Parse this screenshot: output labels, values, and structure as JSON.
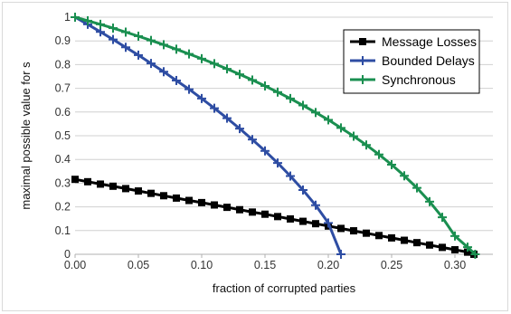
{
  "chart_data": {
    "type": "line",
    "xlabel": "fraction of corrupted parties",
    "ylabel": "maximal possible value for s",
    "xlim": [
      0,
      0.33
    ],
    "ylim": [
      0,
      1
    ],
    "x_ticks": [
      "0.00",
      "0.05",
      "0.10",
      "0.15",
      "0.20",
      "0.25",
      "0.30"
    ],
    "y_ticks": [
      "0",
      "0.1",
      "0.2",
      "0.3",
      "0.4",
      "0.5",
      "0.6",
      "0.7",
      "0.8",
      "0.9",
      "1"
    ],
    "grid": "horizontal",
    "legend_position": "top-right",
    "series": [
      {
        "name": "Message Losses",
        "color": "#000000",
        "marker": "square",
        "x": [
          0.0,
          0.01,
          0.02,
          0.03,
          0.04,
          0.05,
          0.06,
          0.07,
          0.08,
          0.09,
          0.1,
          0.11,
          0.12,
          0.13,
          0.14,
          0.15,
          0.16,
          0.17,
          0.18,
          0.19,
          0.2,
          0.21,
          0.22,
          0.23,
          0.24,
          0.25,
          0.26,
          0.27,
          0.28,
          0.29,
          0.3,
          0.31,
          0.315
        ],
        "y": [
          0.316,
          0.306,
          0.296,
          0.287,
          0.277,
          0.267,
          0.257,
          0.247,
          0.237,
          0.227,
          0.218,
          0.208,
          0.198,
          0.188,
          0.178,
          0.169,
          0.159,
          0.149,
          0.139,
          0.129,
          0.119,
          0.109,
          0.099,
          0.089,
          0.079,
          0.069,
          0.059,
          0.049,
          0.039,
          0.029,
          0.019,
          0.009,
          0.0
        ]
      },
      {
        "name": "Bounded Delays",
        "color": "#2e4da3",
        "marker": "cross",
        "x": [
          0.0,
          0.01,
          0.02,
          0.03,
          0.04,
          0.05,
          0.06,
          0.07,
          0.08,
          0.09,
          0.1,
          0.11,
          0.12,
          0.13,
          0.14,
          0.15,
          0.16,
          0.17,
          0.18,
          0.19,
          0.2,
          0.21
        ],
        "y": [
          1.0,
          0.97,
          0.938,
          0.906,
          0.873,
          0.84,
          0.805,
          0.77,
          0.733,
          0.696,
          0.657,
          0.616,
          0.574,
          0.53,
          0.484,
          0.436,
          0.385,
          0.33,
          0.271,
          0.207,
          0.132,
          0.0
        ]
      },
      {
        "name": "Synchronous",
        "color": "#1a8f50",
        "marker": "cross",
        "x": [
          0.0,
          0.01,
          0.02,
          0.03,
          0.04,
          0.05,
          0.06,
          0.07,
          0.08,
          0.09,
          0.1,
          0.11,
          0.12,
          0.13,
          0.14,
          0.15,
          0.16,
          0.17,
          0.18,
          0.19,
          0.2,
          0.21,
          0.22,
          0.23,
          0.24,
          0.25,
          0.26,
          0.27,
          0.28,
          0.29,
          0.3,
          0.31,
          0.316
        ],
        "y": [
          1.0,
          0.985,
          0.97,
          0.954,
          0.937,
          0.92,
          0.902,
          0.884,
          0.865,
          0.845,
          0.825,
          0.804,
          0.782,
          0.759,
          0.735,
          0.71,
          0.684,
          0.657,
          0.628,
          0.598,
          0.567,
          0.533,
          0.498,
          0.461,
          0.421,
          0.378,
          0.331,
          0.28,
          0.222,
          0.156,
          0.077,
          0.03,
          0.0
        ]
      }
    ]
  }
}
